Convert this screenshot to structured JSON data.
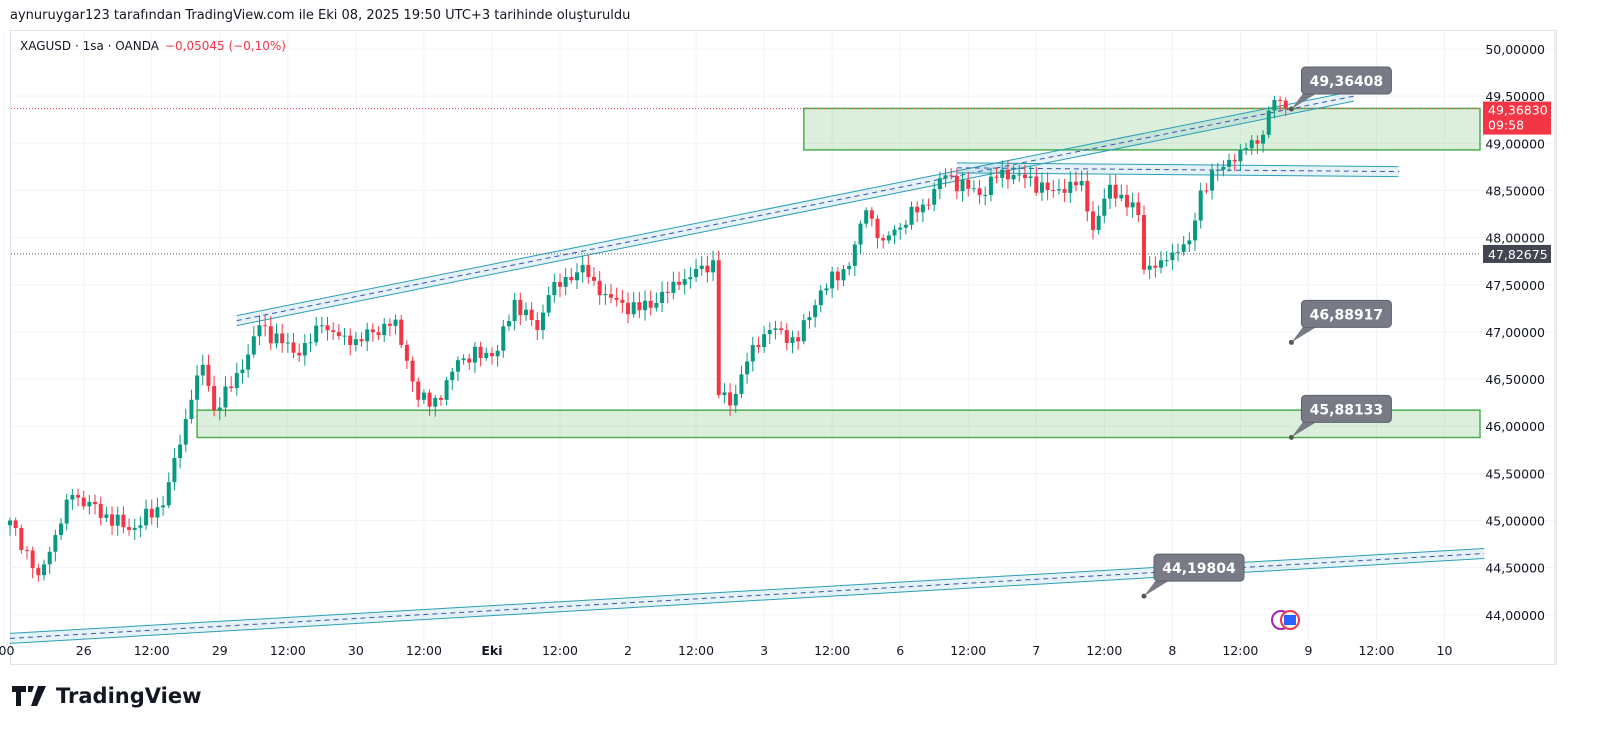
{
  "credit": "aynuruygar123 tarafından TradingView.com ile Eki 08, 2025 19:50 UTC+3 tarihinde oluşturuldu",
  "legend": {
    "symbol": "XAGUSD · 1sa · OANDA",
    "change": "−0,05045 (−0,10%)"
  },
  "brand": "TradingView",
  "colors": {
    "up": "#089981",
    "down": "#f23645",
    "zone": "#4caf50",
    "channel": "#2a9fb5",
    "callout": "#787b86"
  },
  "chart_data": {
    "type": "candlestick",
    "title": "XAGUSD · 1sa · OANDA",
    "ylim": [
      43.75,
      50.2
    ],
    "y_ticks": [
      "50,00000",
      "49,50000",
      "49,00000",
      "48,50000",
      "48,00000",
      "47,50000",
      "47,00000",
      "46,50000",
      "46,00000",
      "45,50000",
      "45,00000",
      "44,50000",
      "44,00000"
    ],
    "y_tick_values": [
      50,
      49.5,
      49,
      48.5,
      48,
      47.5,
      47,
      46.5,
      46,
      45.5,
      45,
      44.5,
      44
    ],
    "x_ticks": [
      ":00",
      "26",
      "12:00",
      "29",
      "12:00",
      "30",
      "12:00",
      "Eki",
      "12:00",
      "2",
      "12:00",
      "3",
      "12:00",
      "6",
      "12:00",
      "7",
      "12:00",
      "8",
      "12:00",
      "9",
      "12:00",
      "10"
    ],
    "x_tick_hours": [
      -1,
      13,
      25,
      37,
      49,
      61,
      73,
      85,
      97,
      109,
      121,
      133,
      145,
      157,
      169,
      181,
      193,
      205,
      217,
      229,
      241,
      253
    ],
    "close_path_anchors": [
      [
        0,
        45.0
      ],
      [
        5,
        44.42
      ],
      [
        11,
        45.27
      ],
      [
        21,
        44.9
      ],
      [
        27,
        45.16
      ],
      [
        32,
        46.28
      ],
      [
        34,
        46.65
      ],
      [
        36,
        46.17
      ],
      [
        41,
        46.6
      ],
      [
        44,
        47.07
      ],
      [
        51,
        46.75
      ],
      [
        55,
        47.07
      ],
      [
        60,
        46.86
      ],
      [
        68,
        47.13
      ],
      [
        72,
        46.28
      ],
      [
        76,
        46.28
      ],
      [
        79,
        46.7
      ],
      [
        86,
        46.8
      ],
      [
        89,
        47.34
      ],
      [
        93,
        47.02
      ],
      [
        95,
        47.39
      ],
      [
        101,
        47.71
      ],
      [
        104,
        47.39
      ],
      [
        111,
        47.23
      ],
      [
        118,
        47.5
      ],
      [
        124,
        47.76
      ],
      [
        125,
        46.33
      ],
      [
        127,
        46.22
      ],
      [
        131,
        46.86
      ],
      [
        134,
        47.02
      ],
      [
        139,
        46.9
      ],
      [
        143,
        47.44
      ],
      [
        148,
        47.7
      ],
      [
        151,
        48.29
      ],
      [
        154,
        47.97
      ],
      [
        161,
        48.35
      ],
      [
        165,
        48.66
      ],
      [
        171,
        48.45
      ],
      [
        175,
        48.72
      ],
      [
        184,
        48.5
      ],
      [
        189,
        48.6
      ],
      [
        191,
        48.08
      ],
      [
        194,
        48.56
      ],
      [
        199,
        48.24
      ],
      [
        200,
        47.66
      ],
      [
        203,
        47.76
      ],
      [
        208,
        47.97
      ],
      [
        210,
        48.5
      ],
      [
        213,
        48.72
      ],
      [
        217,
        48.93
      ],
      [
        221,
        49.09
      ],
      [
        223,
        49.46
      ],
      [
        225,
        49.37
      ]
    ],
    "last_price": {
      "value": 49.3683,
      "label": "49,36830",
      "countdown": "09:58"
    },
    "marked_price": {
      "value": 47.82675,
      "label": "47,82675"
    },
    "zones": [
      {
        "top": 49.37,
        "bottom": 48.93,
        "from_hour": 140
      },
      {
        "top": 46.17,
        "bottom": 45.88,
        "from_hour": 33
      }
    ],
    "channels": [
      {
        "from": [
          40,
          47.12
        ],
        "to": [
          237,
          49.5
        ]
      },
      {
        "from": [
          167,
          48.74
        ],
        "to": [
          245,
          48.7
        ]
      },
      {
        "from": [
          0,
          43.75
        ],
        "to": [
          260,
          44.65
        ]
      }
    ],
    "callouts": [
      {
        "label": "49,36408",
        "hour": 226,
        "price": 49.36408
      },
      {
        "label": "46,88917",
        "hour": 226,
        "price": 46.88917
      },
      {
        "label": "45,88133",
        "hour": 226,
        "price": 45.88133
      },
      {
        "label": "44,19804",
        "hour": 200,
        "price": 44.19804
      }
    ]
  }
}
